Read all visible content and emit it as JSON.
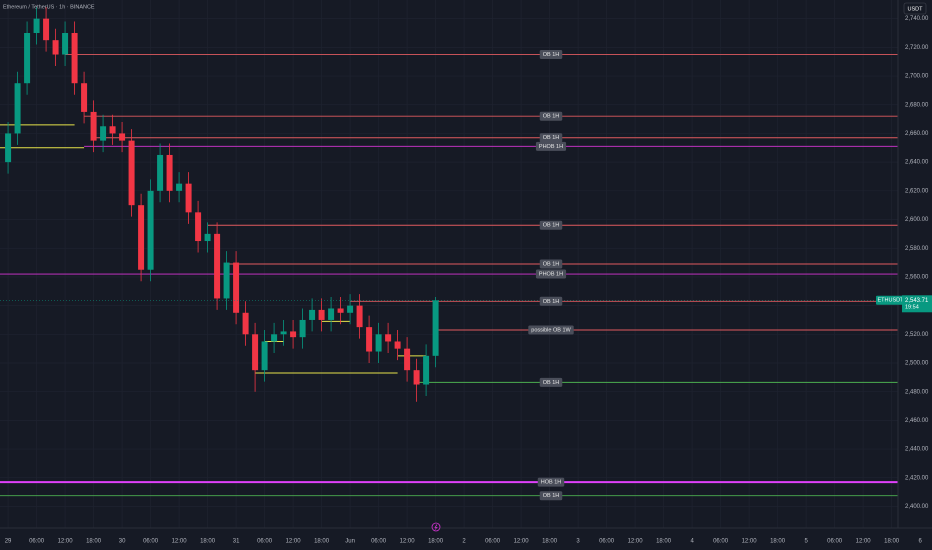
{
  "chart_data": {
    "type": "candlestick",
    "title": "Ethereum / TetherUS · 1h · BINANCE",
    "currency": "USDT",
    "symbol": "ETHUSDT",
    "last_price": {
      "value": 2543.71,
      "label": "2,543.71"
    },
    "countdown": "19:54",
    "up_color": "#089981",
    "down_color": "#f23645",
    "grid": true,
    "x": [
      0,
      2,
      4,
      6,
      8,
      10,
      12,
      14,
      16,
      18,
      20,
      22,
      24,
      26,
      28,
      30,
      32,
      34,
      36,
      38,
      40,
      42,
      44,
      46,
      48,
      50,
      52,
      54,
      56,
      58,
      60,
      62,
      64,
      66,
      68,
      70,
      72,
      74,
      76,
      78,
      80,
      82,
      84,
      86,
      88,
      90
    ],
    "open": [
      2640,
      2660,
      2695,
      2730,
      2740,
      2725,
      2715,
      2730,
      2695,
      2675,
      2655,
      2665,
      2660,
      2655,
      2610,
      2565,
      2620,
      2645,
      2620,
      2625,
      2605,
      2585,
      2590,
      2545,
      2570,
      2535,
      2520,
      2495,
      2515,
      2520,
      2522,
      2518,
      2530,
      2537,
      2530,
      2538,
      2535,
      2540,
      2525,
      2508,
      2520,
      2515,
      2510,
      2495,
      2485,
      2505
    ],
    "high": [
      2668,
      2703,
      2738,
      2748,
      2748,
      2733,
      2738,
      2738,
      2703,
      2683,
      2673,
      2673,
      2668,
      2663,
      2618,
      2628,
      2653,
      2653,
      2633,
      2633,
      2613,
      2598,
      2598,
      2578,
      2578,
      2543,
      2528,
      2523,
      2528,
      2530,
      2530,
      2538,
      2545,
      2545,
      2546,
      2546,
      2548,
      2548,
      2533,
      2528,
      2528,
      2523,
      2518,
      2503,
      2513,
      2546
    ],
    "low": [
      2632,
      2652,
      2687,
      2722,
      2717,
      2707,
      2707,
      2687,
      2667,
      2647,
      2647,
      2652,
      2647,
      2602,
      2557,
      2557,
      2612,
      2612,
      2612,
      2597,
      2577,
      2577,
      2537,
      2537,
      2527,
      2512,
      2480,
      2487,
      2507,
      2512,
      2510,
      2510,
      2522,
      2522,
      2522,
      2527,
      2527,
      2517,
      2500,
      2500,
      2507,
      2502,
      2487,
      2473,
      2477,
      2497
    ],
    "close": [
      2660,
      2695,
      2730,
      2740,
      2725,
      2715,
      2730,
      2695,
      2675,
      2655,
      2665,
      2660,
      2655,
      2610,
      2565,
      2620,
      2645,
      2620,
      2625,
      2605,
      2585,
      2590,
      2545,
      2570,
      2535,
      2520,
      2495,
      2515,
      2520,
      2522,
      2518,
      2530,
      2537,
      2530,
      2538,
      2535,
      2540,
      2525,
      2508,
      2520,
      2515,
      2510,
      2495,
      2485,
      2505,
      2543.71
    ],
    "levels": [
      {
        "label": "OB 1H",
        "price": 2715,
        "start": 12,
        "color": "#e05a5f"
      },
      {
        "label": "OB 1H",
        "price": 2672,
        "start": 16,
        "color": "#e05a5f"
      },
      {
        "label": "OB 1H",
        "price": 2657,
        "start": 18,
        "color": "#e05a5f"
      },
      {
        "label": "PHOB 1H",
        "price": 2651,
        "start": 16,
        "color": "#d534d5"
      },
      {
        "label": "OB 1H",
        "price": 2596,
        "start": 42,
        "color": "#e05a5f"
      },
      {
        "label": "OB 1H",
        "price": 2569,
        "start": 46,
        "color": "#e05a5f"
      },
      {
        "label": "PHOB 1H",
        "price": 2562,
        "start": -2,
        "color": "#d534d5"
      },
      {
        "label": "OB 1H",
        "price": 2543,
        "start": 72,
        "color": "#e05a5f"
      },
      {
        "label": "possible OB 1W",
        "price": 2523,
        "start": 90,
        "color": "#e05a5f"
      },
      {
        "label": "OB 1H",
        "price": 2486.5,
        "start": 86,
        "color": "#4caf50"
      },
      {
        "label": "HOB 1H",
        "price": 2417,
        "start": -2,
        "color": "#e040fb"
      },
      {
        "label": "OB 1H",
        "price": 2407.5,
        "start": -2,
        "color": "#4caf50"
      }
    ],
    "lines": [
      {
        "price": 2666,
        "start": -2,
        "end": 14,
        "color": "#e6e34a"
      },
      {
        "price": 2650,
        "start": -2,
        "end": 16,
        "color": "#e6e34a"
      },
      {
        "price": 2493,
        "start": 52,
        "end": 82,
        "color": "#e6e34a"
      },
      {
        "price": 2529,
        "start": 66,
        "end": 72,
        "color": "#e6e34a"
      },
      {
        "price": 2515,
        "start": 54,
        "end": 58,
        "color": "#e6e34a"
      },
      {
        "price": 2505,
        "start": 82,
        "end": 88,
        "color": "#e6e34a"
      }
    ],
    "xlim": [
      -1.7,
      194.5
    ],
    "ylim": [
      2385,
      2753
    ],
    "yticks": [
      {
        "value": 2400,
        "label": "2,400.00"
      },
      {
        "value": 2420,
        "label": "2,420.00"
      },
      {
        "value": 2440,
        "label": "2,440.00"
      },
      {
        "value": 2460,
        "label": "2,460.00"
      },
      {
        "value": 2480,
        "label": "2,480.00"
      },
      {
        "value": 2500,
        "label": "2,500.00"
      },
      {
        "value": 2520,
        "label": "2,520.00"
      },
      {
        "value": 2540,
        "label": "2,540.00"
      },
      {
        "value": 2560,
        "label": "2,560.00"
      },
      {
        "value": 2580,
        "label": "2,580.00"
      },
      {
        "value": 2600,
        "label": "2,600.00"
      },
      {
        "value": 2620,
        "label": "2,620.00"
      },
      {
        "value": 2640,
        "label": "2,640.00"
      },
      {
        "value": 2660,
        "label": "2,660.00"
      },
      {
        "value": 2680,
        "label": "2,680.00"
      },
      {
        "value": 2700,
        "label": "2,700.00"
      },
      {
        "value": 2720,
        "label": "2,720.00"
      },
      {
        "value": 2740,
        "label": "2,740.00"
      }
    ],
    "xticks": [
      {
        "value": 0,
        "label": "29"
      },
      {
        "value": 6,
        "label": "06:00"
      },
      {
        "value": 12,
        "label": "12:00"
      },
      {
        "value": 18,
        "label": "18:00"
      },
      {
        "value": 24,
        "label": "30"
      },
      {
        "value": 30,
        "label": "06:00"
      },
      {
        "value": 36,
        "label": "12:00"
      },
      {
        "value": 42,
        "label": "18:00"
      },
      {
        "value": 48,
        "label": "31"
      },
      {
        "value": 54,
        "label": "06:00"
      },
      {
        "value": 60,
        "label": "12:00"
      },
      {
        "value": 66,
        "label": "18:00"
      },
      {
        "value": 72,
        "label": "Jun"
      },
      {
        "value": 78,
        "label": "06:00"
      },
      {
        "value": 84,
        "label": "12:00"
      },
      {
        "value": 90,
        "label": "18:00"
      },
      {
        "value": 96,
        "label": "2"
      },
      {
        "value": 102,
        "label": "06:00"
      },
      {
        "value": 108,
        "label": "12:00"
      },
      {
        "value": 114,
        "label": "18:00"
      },
      {
        "value": 120,
        "label": "3"
      },
      {
        "value": 126,
        "label": "06:00"
      },
      {
        "value": 132,
        "label": "12:00"
      },
      {
        "value": 138,
        "label": "18:00"
      },
      {
        "value": 144,
        "label": "4"
      },
      {
        "value": 150,
        "label": "06:00"
      },
      {
        "value": 156,
        "label": "12:00"
      },
      {
        "value": 162,
        "label": "18:00"
      },
      {
        "value": 168,
        "label": "5"
      },
      {
        "value": 174,
        "label": "06:00"
      },
      {
        "value": 180,
        "label": "12:00"
      },
      {
        "value": 186,
        "label": "18:00"
      },
      {
        "value": 192,
        "label": "6"
      }
    ]
  }
}
